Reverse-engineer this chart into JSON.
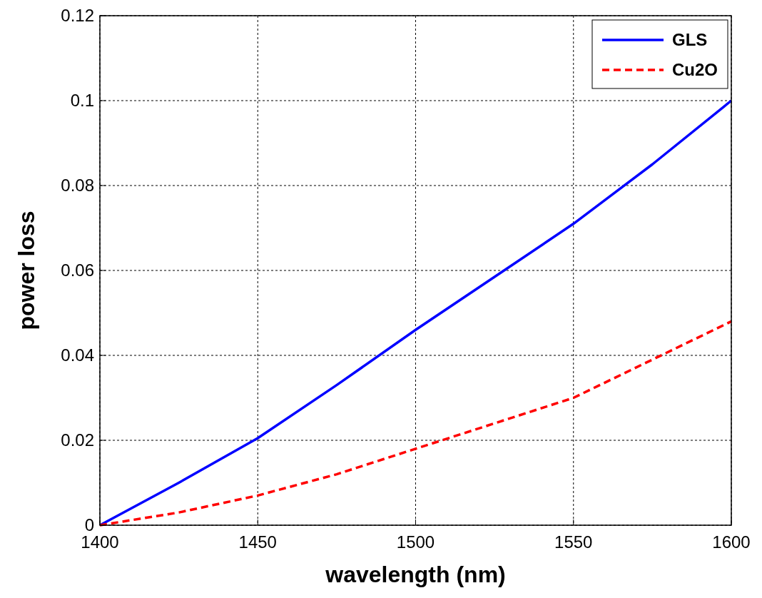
{
  "chart_data": {
    "type": "line",
    "xlabel": "wavelength (nm)",
    "ylabel": "power loss",
    "x": [
      1400,
      1425,
      1450,
      1475,
      1500,
      1525,
      1550,
      1575,
      1600
    ],
    "series": [
      {
        "name": "GLS",
        "color": "#0000ff",
        "line_style": "solid",
        "values": [
          0,
          0.01,
          0.0205,
          0.033,
          0.046,
          0.0585,
          0.071,
          0.085,
          0.1
        ]
      },
      {
        "name": "Cu2O",
        "color": "#ff0000",
        "line_style": "dashed",
        "values": [
          0,
          0.003,
          0.007,
          0.012,
          0.018,
          0.024,
          0.03,
          0.039,
          0.048
        ]
      }
    ],
    "xlim": [
      1400,
      1600
    ],
    "xticks": [
      1400,
      1450,
      1500,
      1550,
      1600
    ],
    "ylim": [
      0,
      0.12
    ],
    "yticks": [
      0,
      0.02,
      0.04,
      0.06,
      0.08,
      0.1,
      0.12
    ],
    "grid": true,
    "legend": "top right",
    "marker": "none"
  }
}
